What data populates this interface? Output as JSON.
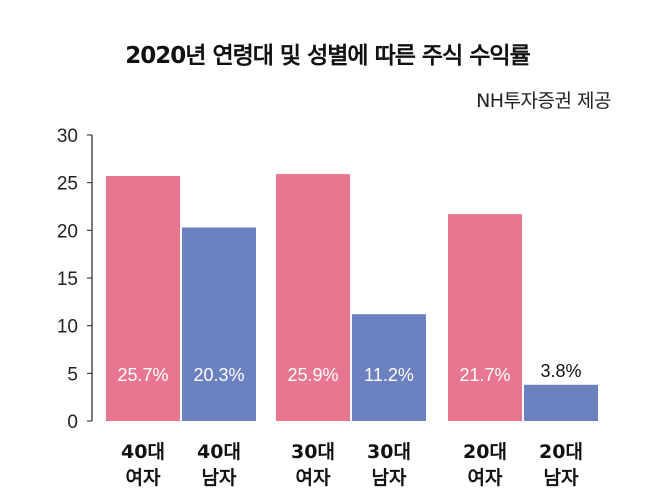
{
  "chart_data": {
    "type": "bar",
    "title": "2020년 연령대 및 성별에 따른 주식 수익률",
    "subtitle": "NH투자증권 제공",
    "xlabel": "",
    "ylabel": "",
    "ylim": [
      0,
      30
    ],
    "yticks": [
      "0",
      "5",
      "10",
      "15",
      "20",
      "25",
      "30"
    ],
    "grid": false,
    "categories": [
      {
        "line1": "40대",
        "line2": "여자"
      },
      {
        "line1": "40대",
        "line2": "남자"
      },
      {
        "line1": "30대",
        "line2": "여자"
      },
      {
        "line1": "30대",
        "line2": "남자"
      },
      {
        "line1": "20대",
        "line2": "여자"
      },
      {
        "line1": "20대",
        "line2": "남자"
      }
    ],
    "values": [
      25.7,
      20.3,
      25.9,
      11.2,
      21.7,
      3.8
    ],
    "data_labels": [
      "25.7%",
      "20.3%",
      "25.9%",
      "11.2%",
      "21.7%",
      "3.8%"
    ],
    "gender": [
      "female",
      "male",
      "female",
      "male",
      "female",
      "male"
    ],
    "colors": {
      "female": "#e97691",
      "male": "#6c81c0",
      "axis": "#222222"
    }
  }
}
